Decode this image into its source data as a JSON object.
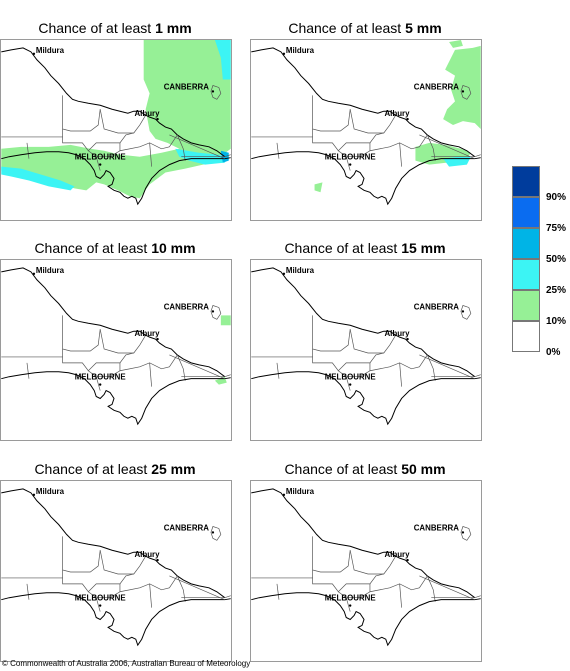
{
  "panels": [
    {
      "prefix": "Chance of at least ",
      "amount": "1 mm"
    },
    {
      "prefix": "Chance of at least ",
      "amount": "5 mm"
    },
    {
      "prefix": "Chance of at least ",
      "amount": "10 mm"
    },
    {
      "prefix": "Chance of at least ",
      "amount": "15 mm"
    },
    {
      "prefix": "Chance of at least ",
      "amount": "25 mm"
    },
    {
      "prefix": "Chance of at least ",
      "amount": "50 mm"
    }
  ],
  "cities": {
    "mildura": "Mildura",
    "canberra": "CANBERRA",
    "albury": "Albury",
    "melbourne": "MELBOURNE"
  },
  "legend": [
    {
      "label": "90%",
      "color": "#003c9c"
    },
    {
      "label": "75%",
      "color": "#0a6cf0"
    },
    {
      "label": "50%",
      "color": "#00b4e6"
    },
    {
      "label": "25%",
      "color": "#3cf4f4"
    },
    {
      "label": "10%",
      "color": "#96f096"
    },
    {
      "label": "0%",
      "color": "#ffffff"
    }
  ],
  "copyright": "© Commonwealth of Australia 2006, Australian Bureau of Meteorology"
}
